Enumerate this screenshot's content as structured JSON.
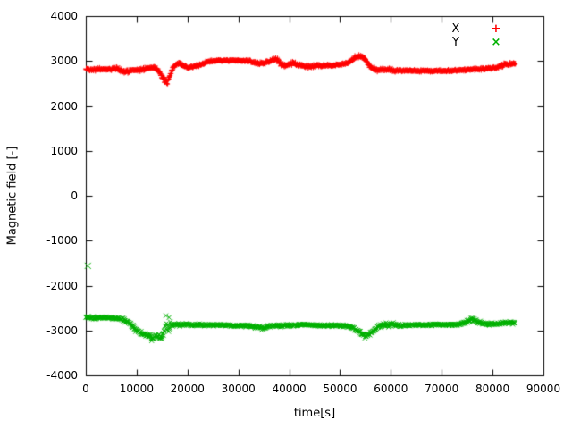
{
  "chart_data": {
    "type": "scatter",
    "title": "",
    "xlabel": "time[s]",
    "ylabel": "Magnetic field [-]",
    "xlim": [
      0,
      90000
    ],
    "ylim": [
      -4000,
      4000
    ],
    "xticks": [
      0,
      10000,
      20000,
      30000,
      40000,
      50000,
      60000,
      70000,
      80000,
      90000
    ],
    "yticks": [
      -4000,
      -3000,
      -2000,
      -1000,
      0,
      1000,
      2000,
      3000,
      4000
    ],
    "grid": false,
    "legend": {
      "position": "top-right",
      "entries": [
        {
          "label": "X",
          "marker": "+",
          "color": "#ff0000"
        },
        {
          "label": "Y",
          "marker": "×",
          "color": "#00b000"
        }
      ]
    },
    "series": [
      {
        "name": "X",
        "color": "#ff0000",
        "marker": "plus",
        "anchors": [
          [
            0,
            2820,
            50
          ],
          [
            2000,
            2810,
            50
          ],
          [
            4000,
            2820,
            50
          ],
          [
            6000,
            2830,
            50
          ],
          [
            7500,
            2770,
            60
          ],
          [
            9000,
            2780,
            50
          ],
          [
            10500,
            2800,
            40
          ],
          [
            12000,
            2840,
            50
          ],
          [
            13500,
            2860,
            50
          ],
          [
            14500,
            2760,
            80
          ],
          [
            15300,
            2560,
            90
          ],
          [
            16000,
            2520,
            90
          ],
          [
            16600,
            2700,
            80
          ],
          [
            17300,
            2900,
            60
          ],
          [
            18200,
            2950,
            50
          ],
          [
            19000,
            2900,
            40
          ],
          [
            20000,
            2860,
            40
          ],
          [
            21000,
            2870,
            40
          ],
          [
            22500,
            2920,
            40
          ],
          [
            24000,
            2990,
            30
          ],
          [
            26000,
            3010,
            25
          ],
          [
            28000,
            3010,
            25
          ],
          [
            30000,
            3010,
            25
          ],
          [
            32000,
            3000,
            30
          ],
          [
            33500,
            2950,
            40
          ],
          [
            35000,
            2960,
            50
          ],
          [
            36500,
            3020,
            60
          ],
          [
            37500,
            3040,
            60
          ],
          [
            38500,
            2930,
            60
          ],
          [
            39500,
            2900,
            50
          ],
          [
            40500,
            2960,
            60
          ],
          [
            41500,
            2920,
            50
          ],
          [
            43000,
            2890,
            50
          ],
          [
            44500,
            2880,
            60
          ],
          [
            46000,
            2900,
            50
          ],
          [
            48000,
            2900,
            40
          ],
          [
            50000,
            2920,
            40
          ],
          [
            51500,
            2960,
            40
          ],
          [
            53000,
            3090,
            50
          ],
          [
            54000,
            3120,
            50
          ],
          [
            55000,
            3030,
            50
          ],
          [
            56000,
            2870,
            50
          ],
          [
            57000,
            2800,
            40
          ],
          [
            58500,
            2810,
            60
          ],
          [
            60000,
            2800,
            60
          ],
          [
            61500,
            2790,
            40
          ],
          [
            63000,
            2780,
            30
          ],
          [
            65000,
            2780,
            30
          ],
          [
            67000,
            2780,
            30
          ],
          [
            69000,
            2780,
            30
          ],
          [
            71000,
            2780,
            30
          ],
          [
            73000,
            2790,
            30
          ],
          [
            75000,
            2810,
            40
          ],
          [
            77000,
            2820,
            40
          ],
          [
            79000,
            2830,
            40
          ],
          [
            80500,
            2850,
            50
          ],
          [
            81500,
            2890,
            60
          ],
          [
            82500,
            2920,
            60
          ],
          [
            83500,
            2930,
            50
          ],
          [
            84500,
            2950,
            40
          ]
        ],
        "outliers": []
      },
      {
        "name": "Y",
        "color": "#00b000",
        "marker": "cross",
        "anchors": [
          [
            0,
            -2700,
            40
          ],
          [
            2000,
            -2720,
            40
          ],
          [
            4000,
            -2710,
            40
          ],
          [
            6000,
            -2730,
            40
          ],
          [
            7500,
            -2760,
            50
          ],
          [
            8800,
            -2850,
            60
          ],
          [
            9800,
            -2980,
            60
          ],
          [
            11000,
            -3060,
            70
          ],
          [
            12000,
            -3120,
            80
          ],
          [
            13000,
            -3160,
            90
          ],
          [
            14000,
            -3120,
            80
          ],
          [
            15000,
            -3160,
            90
          ],
          [
            15700,
            -2900,
            400
          ],
          [
            16300,
            -2950,
            320
          ],
          [
            16800,
            -2860,
            80
          ],
          [
            18000,
            -2870,
            50
          ],
          [
            19500,
            -2870,
            40
          ],
          [
            21000,
            -2880,
            40
          ],
          [
            23000,
            -2880,
            35
          ],
          [
            25000,
            -2880,
            30
          ],
          [
            27000,
            -2880,
            30
          ],
          [
            29000,
            -2890,
            30
          ],
          [
            31000,
            -2890,
            35
          ],
          [
            33000,
            -2910,
            50
          ],
          [
            34500,
            -2950,
            60
          ],
          [
            35500,
            -2930,
            60
          ],
          [
            37000,
            -2890,
            40
          ],
          [
            39000,
            -2890,
            40
          ],
          [
            41000,
            -2880,
            40
          ],
          [
            43000,
            -2860,
            40
          ],
          [
            45000,
            -2880,
            40
          ],
          [
            47000,
            -2890,
            40
          ],
          [
            49000,
            -2890,
            40
          ],
          [
            51000,
            -2900,
            40
          ],
          [
            52500,
            -2930,
            40
          ],
          [
            54000,
            -3040,
            60
          ],
          [
            55000,
            -3130,
            60
          ],
          [
            56000,
            -3060,
            60
          ],
          [
            57000,
            -2960,
            60
          ],
          [
            58000,
            -2890,
            70
          ],
          [
            59000,
            -2860,
            80
          ],
          [
            60000,
            -2860,
            90
          ],
          [
            61000,
            -2880,
            60
          ],
          [
            62500,
            -2890,
            40
          ],
          [
            64500,
            -2880,
            35
          ],
          [
            66500,
            -2880,
            35
          ],
          [
            68500,
            -2870,
            35
          ],
          [
            70500,
            -2870,
            35
          ],
          [
            72500,
            -2870,
            40
          ],
          [
            74000,
            -2840,
            50
          ],
          [
            75500,
            -2770,
            70
          ],
          [
            76500,
            -2760,
            70
          ],
          [
            77500,
            -2830,
            50
          ],
          [
            79000,
            -2860,
            40
          ],
          [
            80500,
            -2850,
            40
          ],
          [
            82000,
            -2840,
            50
          ],
          [
            83500,
            -2830,
            50
          ],
          [
            84500,
            -2820,
            40
          ]
        ],
        "outliers": [
          [
            400,
            -1560
          ]
        ]
      }
    ]
  }
}
